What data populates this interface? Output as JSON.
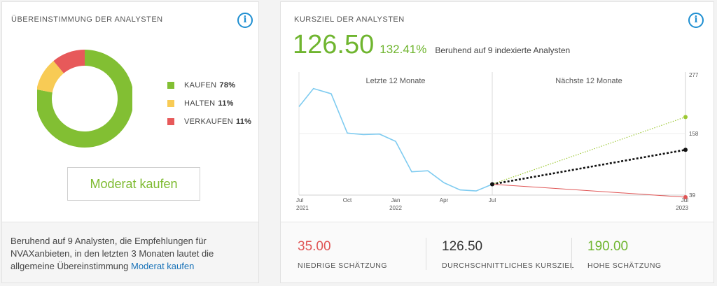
{
  "consensus": {
    "title": "ÜBEREINSTIMMUNG DER ANALYSTEN",
    "info_icon": "i",
    "ratings": [
      {
        "label": "KAUFEN",
        "pct_text": "78%",
        "value": 78,
        "color": "#82bf33"
      },
      {
        "label": "HALTEN",
        "pct_text": "11%",
        "value": 11,
        "color": "#f8cb55"
      },
      {
        "label": "VERKAUFEN",
        "pct_text": "11%",
        "value": 11,
        "color": "#e7595a"
      }
    ],
    "button_label": "Moderat kaufen",
    "footer_text": "Beruhend auf 9 Analysten, die Empfehlungen für NVAXanbieten, in den letzten 3 Monaten lautet die allgemeine Übereinstimmung",
    "footer_link": "Moderat kaufen"
  },
  "price_target": {
    "title": "KURSZIEL DER ANALYSTEN",
    "info_icon": "i",
    "price": "126.50",
    "change": "132.41%",
    "note": "Beruhend auf 9 indexierte Analysten",
    "stats": [
      {
        "value": "35.00",
        "label": "NIEDRIGE SCHÄTZUNG",
        "color": "#e05555"
      },
      {
        "value": "126.50",
        "label": "DURCHSCHNITTLICHES KURSZIEL",
        "color": "#333333"
      },
      {
        "value": "190.00",
        "label": "HOHE SCHÄTZUNG",
        "color": "#6fb52f"
      }
    ]
  },
  "chart_data": {
    "type": "line",
    "section_labels": [
      "Letzte 12 Monate",
      "Nächste 12 Monate"
    ],
    "x_ticks": [
      {
        "label": "Jul",
        "sub": "2021",
        "t": 0
      },
      {
        "label": "Oct",
        "sub": "",
        "t": 3
      },
      {
        "label": "Jan",
        "sub": "2022",
        "t": 6
      },
      {
        "label": "Apr",
        "sub": "",
        "t": 9
      },
      {
        "label": "Jul",
        "sub": "",
        "t": 12
      },
      {
        "label": "Jul",
        "sub": "2023",
        "t": 24
      }
    ],
    "y_ticks": [
      277,
      158,
      39
    ],
    "ylim": [
      39,
      277
    ],
    "history": {
      "color": "#7ecbf0",
      "points": [
        [
          0,
          210
        ],
        [
          0.9,
          245
        ],
        [
          2.0,
          235
        ],
        [
          3.0,
          159
        ],
        [
          4.0,
          156
        ],
        [
          5.0,
          157
        ],
        [
          6.0,
          143
        ],
        [
          7.0,
          84
        ],
        [
          8.0,
          86
        ],
        [
          9.0,
          63
        ],
        [
          10.0,
          49
        ],
        [
          11.0,
          47
        ],
        [
          12.0,
          60
        ]
      ]
    },
    "projections": [
      {
        "name": "high",
        "color": "#9cc832",
        "style": "dotted",
        "from": [
          12,
          60
        ],
        "to": [
          24,
          190
        ]
      },
      {
        "name": "average",
        "color": "#111111",
        "style": "dotted",
        "from": [
          12,
          60
        ],
        "to": [
          24,
          126.5
        ]
      },
      {
        "name": "low",
        "color": "#e05555",
        "style": "solid",
        "from": [
          12,
          60
        ],
        "to": [
          24,
          35
        ]
      }
    ]
  }
}
